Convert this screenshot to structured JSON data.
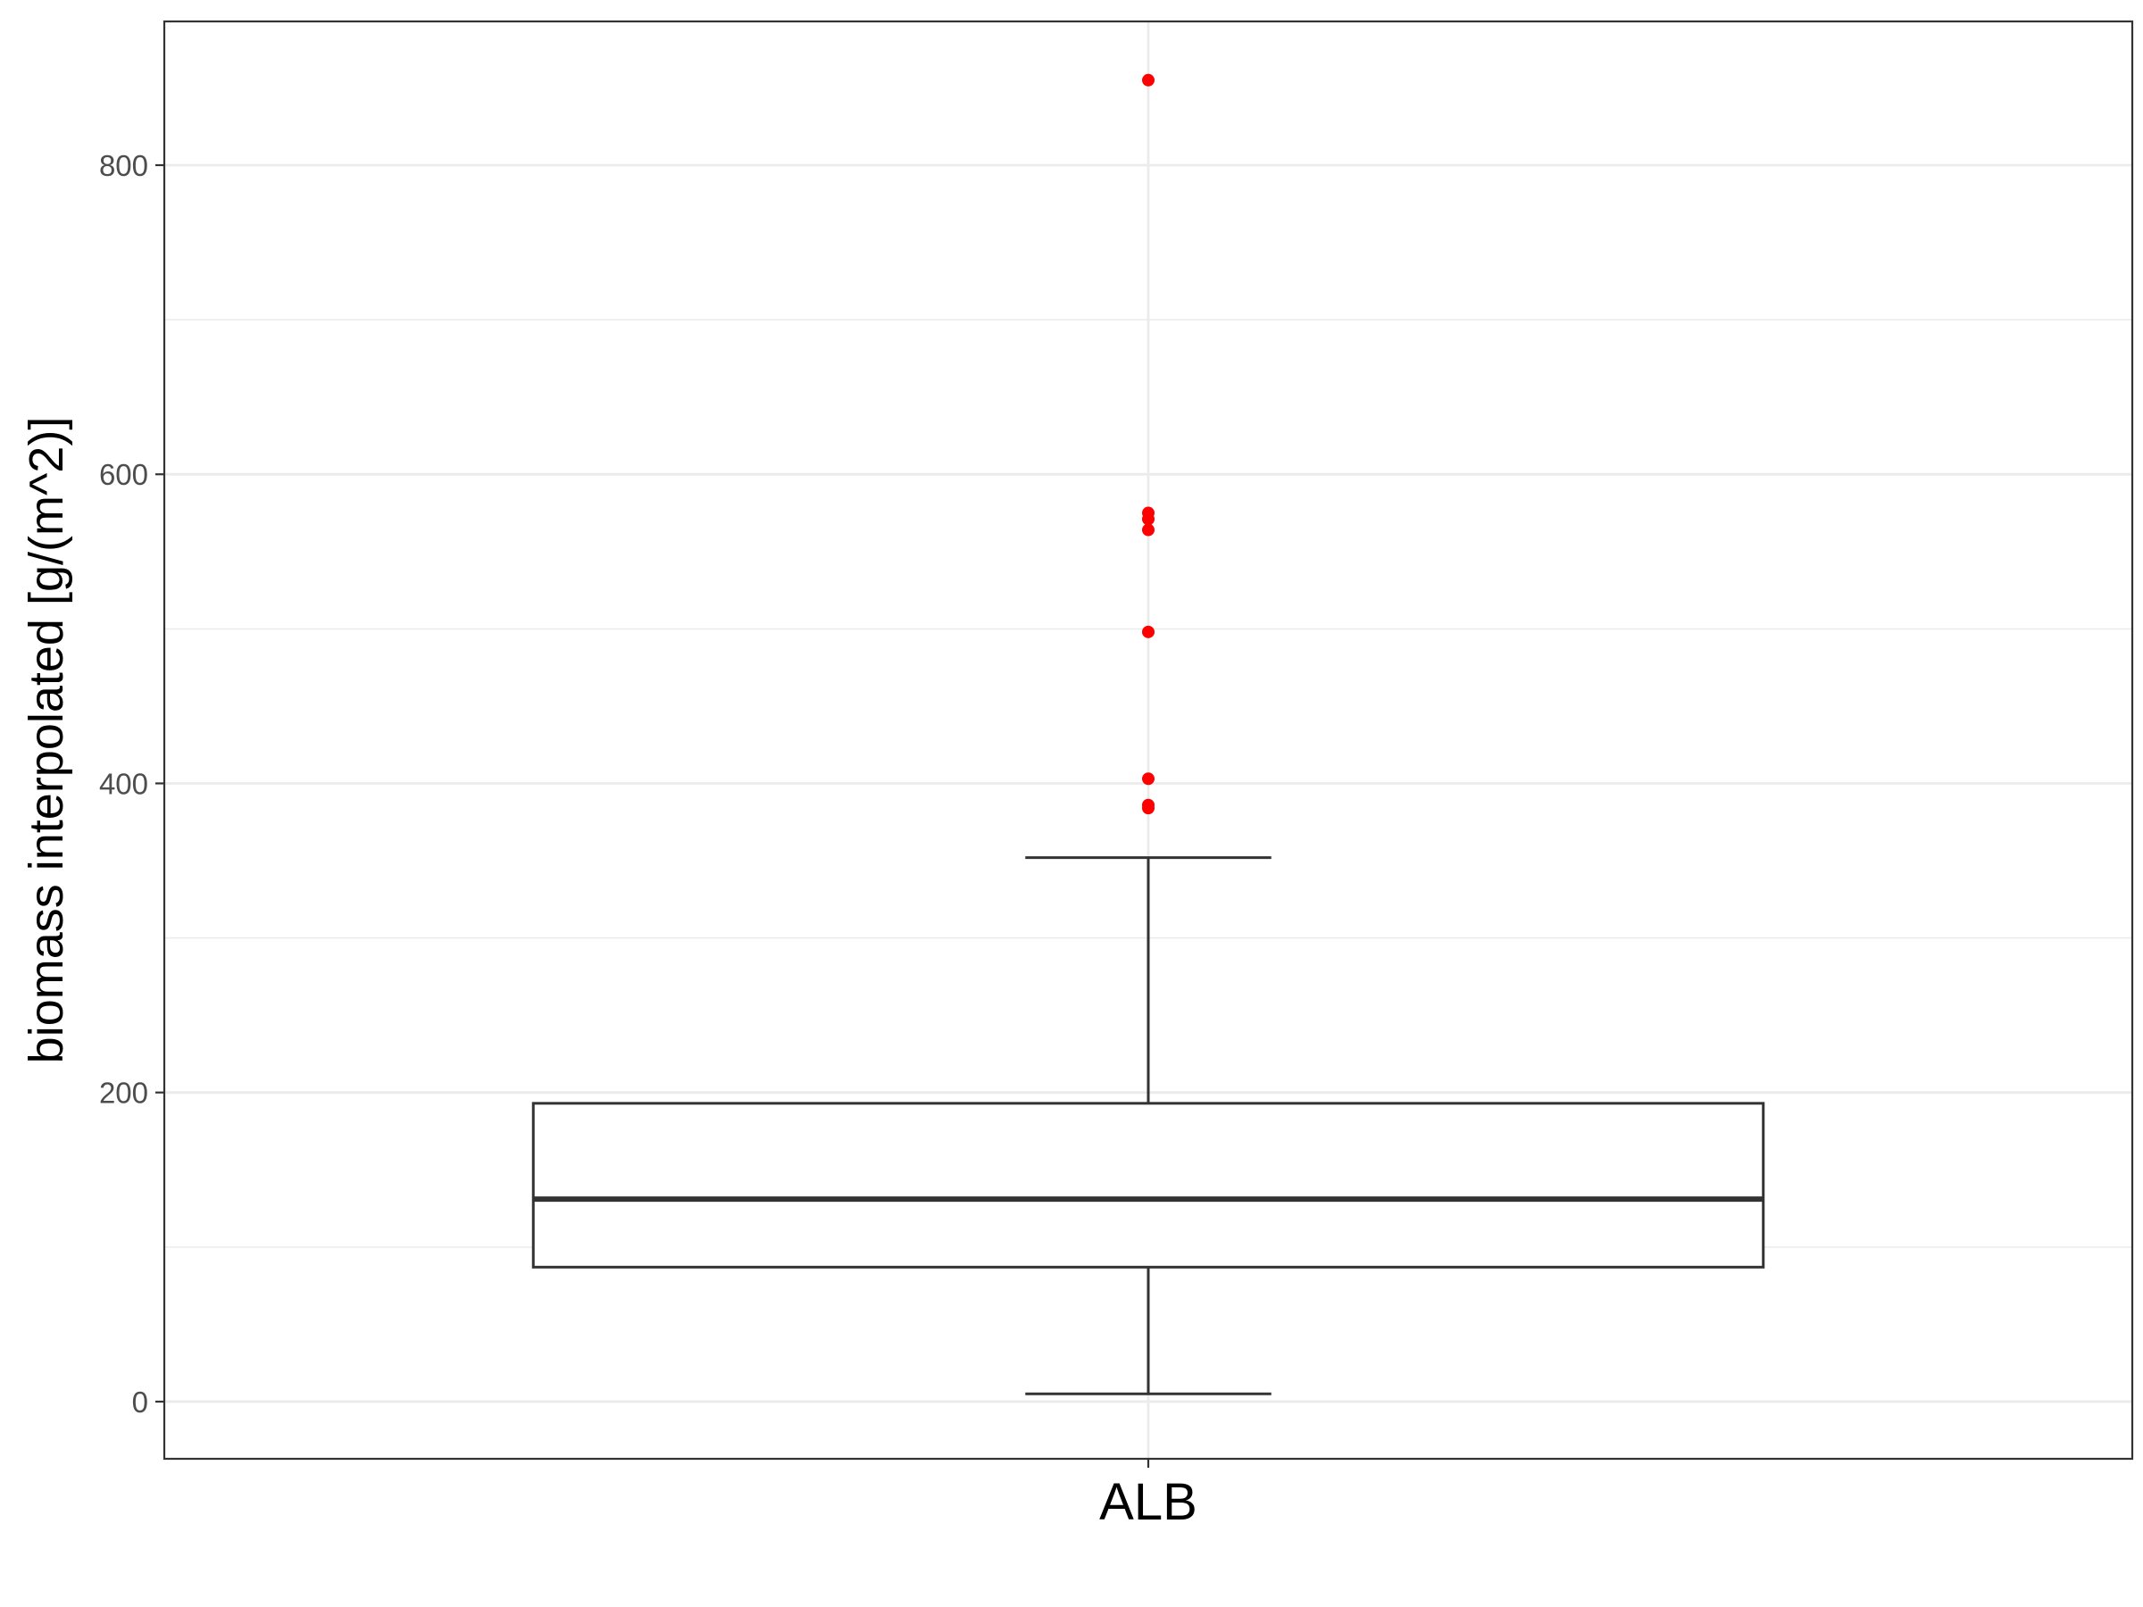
{
  "chart_data": {
    "type": "boxplot",
    "title": "",
    "xlabel": "",
    "ylabel": "biomass interpolated [g/(m^2)]",
    "ylim": [
      -37,
      893
    ],
    "y_ticks": [
      0,
      200,
      400,
      600,
      800
    ],
    "y_minor_ticks": [
      100,
      300,
      500,
      700
    ],
    "grid": true,
    "categories": [
      "ALB"
    ],
    "boxes": [
      {
        "category": "ALB",
        "lower_whisker": 5,
        "q1": 87,
        "median": 131,
        "q3": 193,
        "upper_whisker": 352,
        "outliers": [
          384,
          386,
          403,
          498,
          564,
          571,
          575,
          855
        ]
      }
    ],
    "colors": {
      "outlier": "#ff0000",
      "box_stroke": "#333333",
      "grid": "#ebebeb",
      "panel_border": "#333333"
    }
  }
}
